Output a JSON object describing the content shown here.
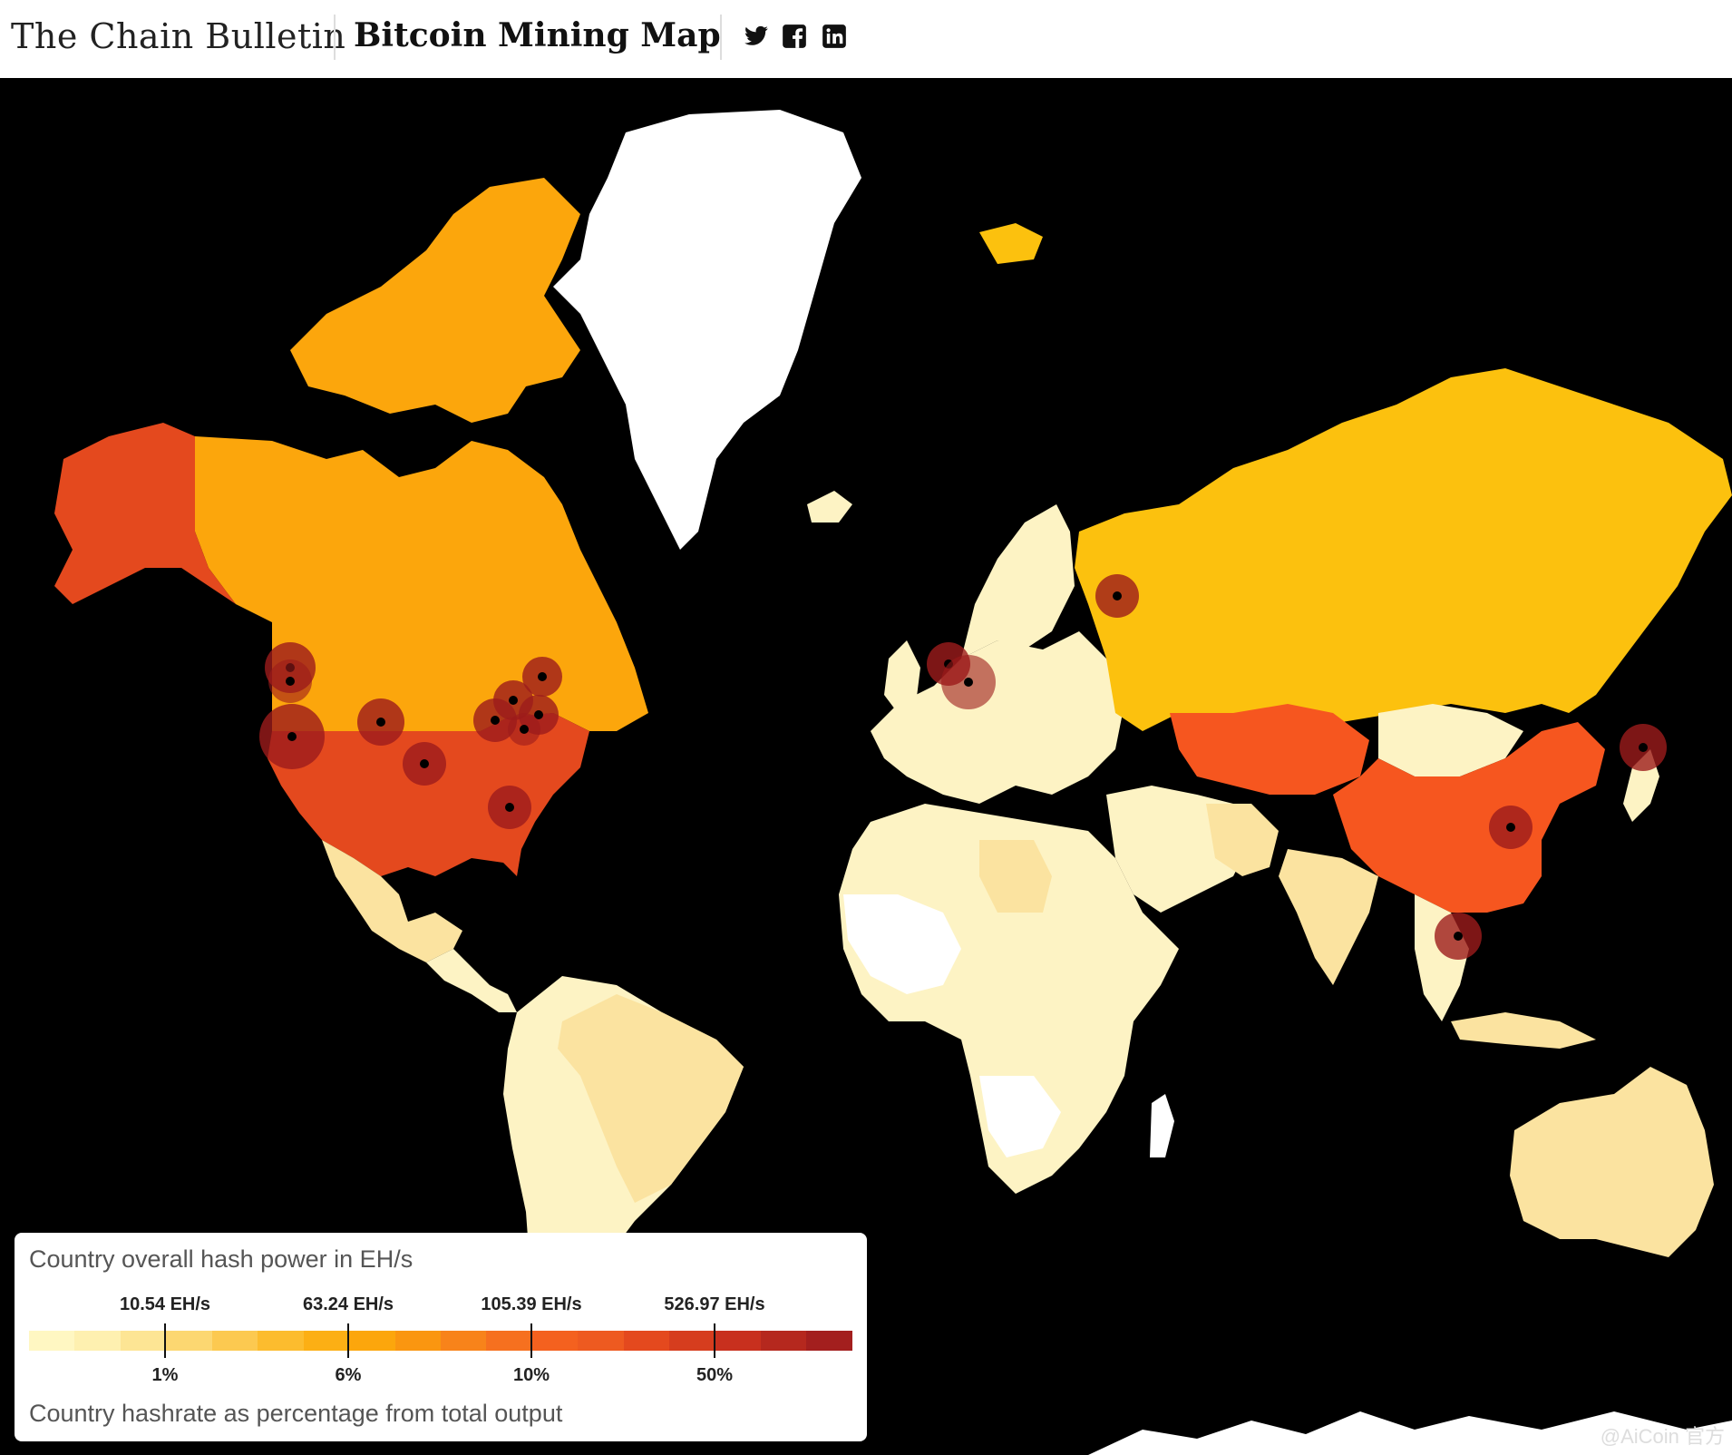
{
  "header": {
    "brand": "The Chain Bulletin",
    "title": "Bitcoin Mining Map",
    "social": [
      "twitter-icon",
      "facebook-icon",
      "linkedin-icon"
    ]
  },
  "colors": {
    "ocean": "#000000",
    "no_data": "#ffffff",
    "tier_lowest": "#fdf3c4",
    "tier_low": "#fbe3a0",
    "tier_mid": "#fcc10e",
    "tier_canada": "#fca60c",
    "tier_high": "#f6561f",
    "tier_usa": "#e4491e",
    "hotspot": "#9c1b1b"
  },
  "legend": {
    "top_label": "Country overall hash power in EH/s",
    "bottom_label": "Country hashrate as percentage from total output",
    "ticks": [
      {
        "eh": "10.54 EH/s",
        "pct": "1%"
      },
      {
        "eh": "63.24 EH/s",
        "pct": "6%"
      },
      {
        "eh": "105.39 EH/s",
        "pct": "10%"
      },
      {
        "eh": "526.97 EH/s",
        "pct": "50%"
      }
    ],
    "scale_colors": [
      "#fff7c2",
      "#fef0b0",
      "#fde594",
      "#fcd771",
      "#fcc950",
      "#fcbc2e",
      "#fcaf14",
      "#fca60c",
      "#fa9610",
      "#f8831a",
      "#f6701f",
      "#f4611f",
      "#ee5a20",
      "#e4491e",
      "#d63d1e",
      "#c8301e",
      "#b5281e",
      "#a31f1e"
    ]
  },
  "watermark": "@AiCoin 官方"
}
